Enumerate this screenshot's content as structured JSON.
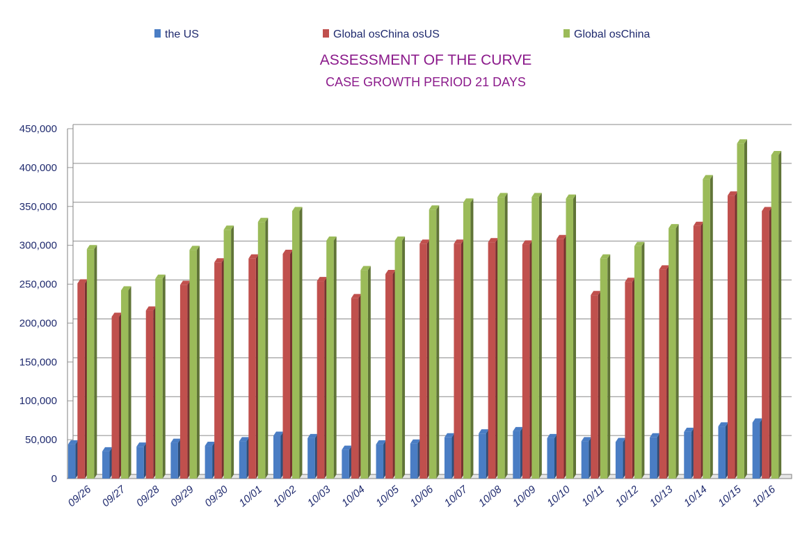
{
  "chart_data": {
    "type": "bar",
    "title": "ASSESSMENT OF THE CURVE",
    "subtitle": "CASE GROWTH PERIOD 21 DAYS",
    "categories": [
      "09/26",
      "09/27",
      "09/28",
      "09/29",
      "09/30",
      "10/01",
      "10/02",
      "10/03",
      "10/04",
      "10/05",
      "10/06",
      "10/07",
      "10/08",
      "10/09",
      "10/10",
      "10/11",
      "10/12",
      "10/13",
      "10/14",
      "10/15",
      "10/16"
    ],
    "series": [
      {
        "name": "the US",
        "color": "#4a7dc4",
        "values": [
          44000,
          35000,
          41000,
          46000,
          42000,
          48000,
          55000,
          52000,
          37000,
          44000,
          45000,
          53000,
          58000,
          61000,
          52000,
          48000,
          47000,
          53000,
          60000,
          67000,
          72000
        ]
      },
      {
        "name": "Global osChina osUS",
        "color": "#c0504d",
        "values": [
          251000,
          208000,
          216000,
          249000,
          278000,
          283000,
          289000,
          254000,
          232000,
          263000,
          302000,
          302000,
          304000,
          301000,
          308000,
          236000,
          253000,
          269000,
          325000,
          364000,
          344000
        ]
      },
      {
        "name": "Global osChina",
        "color": "#9bbb59",
        "values": [
          295000,
          242000,
          257000,
          294000,
          320000,
          330000,
          344000,
          306000,
          268000,
          306000,
          346000,
          355000,
          362000,
          362000,
          360000,
          283000,
          299000,
          322000,
          385000,
          431000,
          416000
        ]
      }
    ],
    "yticks": [
      "0",
      "50,000",
      "100,000",
      "150,000",
      "200,000",
      "250,000",
      "300,000",
      "350,000",
      "400,000",
      "450,000"
    ],
    "ylim": [
      0,
      450000
    ],
    "grid": true,
    "legend_position": "top"
  }
}
